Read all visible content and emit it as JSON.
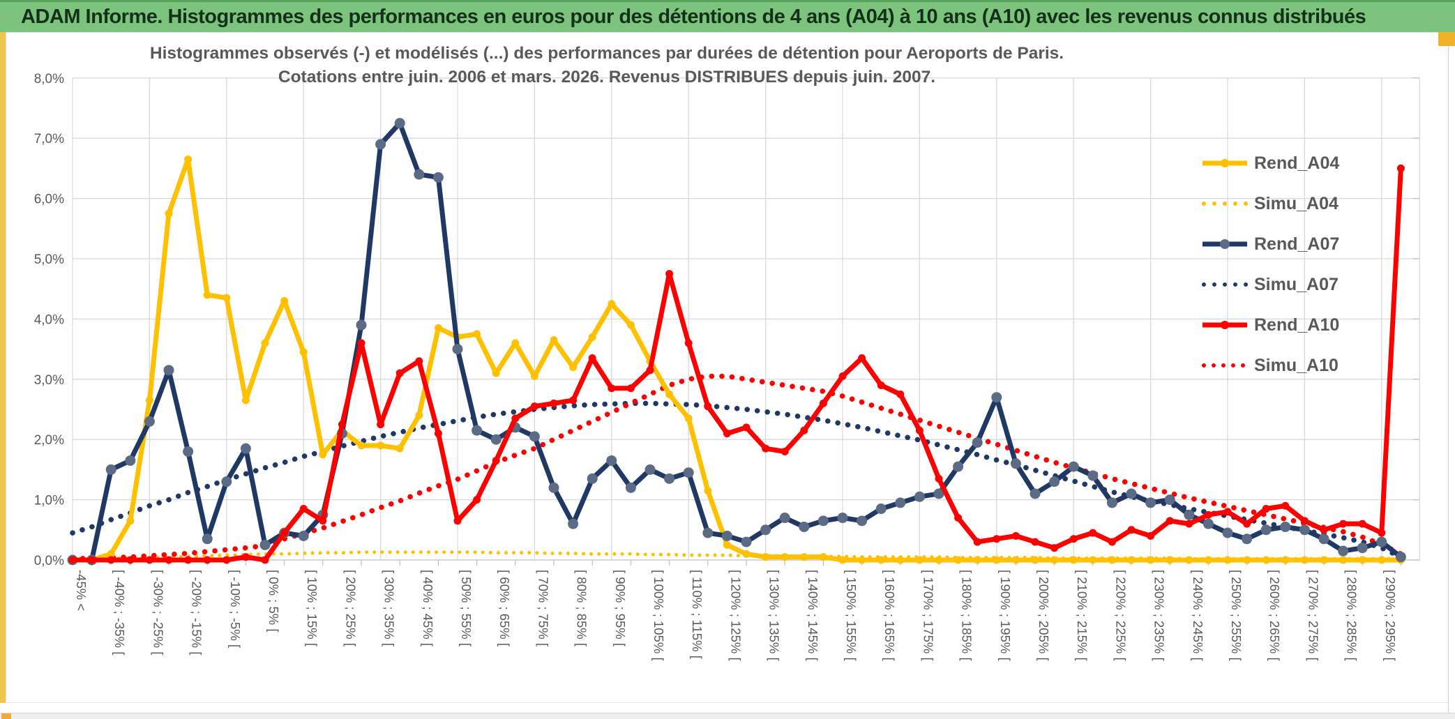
{
  "window": {
    "title": "ADAM Informe. Histogrammes des performances en euros pour des détentions de 4 ans (A04) à 10 ans (A10) avec les revenus connus distribués",
    "colors": {
      "titlebar_green": "#7cc47e",
      "titlebar_text": "#15301a",
      "gold_accent": "#f0c34c",
      "scroll_thumb_orange": "#f2a93b",
      "grid_gray": "#d9d9d9",
      "axis_text_gray": "#595959",
      "series_yellow": "#FFC000",
      "series_navy": "#1F3864",
      "series_red": "#FF0000",
      "navy_marker_gray": "#5b6b85"
    }
  },
  "chart_data": {
    "type": "line",
    "title_line1": "Histogrammes observés (-) et modélisés (...) des performances par durées de détention pour Aeroports de Paris.",
    "title_line2": "Cotations entre juin. 2006 et mars. 2026. Revenus DISTRIBUES depuis juin. 2007.",
    "grid": true,
    "legend_position": "right-inside",
    "ylim": [
      0,
      8
    ],
    "y_tick_labels": [
      "8,0%",
      "7,0%",
      "6,0%",
      "5,0%",
      "4,0%",
      "3,0%",
      "2,0%",
      "1,0%",
      "0,0%"
    ],
    "bins": 70,
    "bin_width_pct": 5,
    "x_tick_labels": [
      "-45% <",
      "[ -40% ; -35% [",
      "[ -30% ; -25% [",
      "[ -20% ; -15% [",
      "[ -10% ; -5% [",
      "[ 0% ; 5% [",
      "[ 10% ; 15% [",
      "[ 20% ; 25% [",
      "[ 30% ; 35% [",
      "[ 40% ; 45% [",
      "[ 50% ; 55% [",
      "[ 60% ; 65% [",
      "[ 70% ; 75% [",
      "[ 80% ; 85% [",
      "[ 90% ; 95% [",
      "[ 100% ; 105% [",
      "[ 110% ; 115% [",
      "[ 120% ; 125% [",
      "[ 130% ; 135% [",
      "[ 140% ; 145% [",
      "[ 150% ; 155% [",
      "[ 160% ; 165% [",
      "[ 170% ; 175% [",
      "[ 180% ; 185% [",
      "[ 190% ; 195% [",
      "[ 200% ; 205% [",
      "[ 210% ; 215% [",
      "[ 220% ; 225% [",
      "[ 230% ; 235% [",
      "[ 240% ; 245% [",
      "[ 250% ; 255% [",
      "[ 260% ; 265% [",
      "[ 270% ; 275% [",
      "[ 280% ; 285% [",
      "[ 290% ; 295% ["
    ],
    "series": [
      {
        "name": "Rend_A04",
        "style": "solid",
        "color": "#FFC000",
        "marker_color": "#FFC000",
        "values": [
          0,
          0,
          0.1,
          0.65,
          2.65,
          5.75,
          6.65,
          4.4,
          4.35,
          2.65,
          3.6,
          4.3,
          3.45,
          1.75,
          2.15,
          1.9,
          1.9,
          1.85,
          2.4,
          3.85,
          3.7,
          3.75,
          3.1,
          3.6,
          3.05,
          3.65,
          3.2,
          3.7,
          4.25,
          3.9,
          3.3,
          2.75,
          2.35,
          1.15,
          0.25,
          0.1,
          0.05,
          0.05,
          0.05,
          0.05,
          0,
          0,
          0,
          0,
          0,
          0,
          0,
          0,
          0,
          0,
          0,
          0,
          0,
          0,
          0,
          0,
          0,
          0,
          0,
          0,
          0,
          0,
          0,
          0,
          0,
          0,
          0,
          0,
          0,
          0
        ]
      },
      {
        "name": "Simu_A04",
        "style": "dotted",
        "color": "#FFC000",
        "values": [
          0.02,
          0.02,
          0.03,
          0.03,
          0.04,
          0.05,
          0.06,
          0.07,
          0.08,
          0.09,
          0.1,
          0.1,
          0.11,
          0.12,
          0.12,
          0.13,
          0.13,
          0.13,
          0.13,
          0.13,
          0.13,
          0.13,
          0.12,
          0.12,
          0.12,
          0.11,
          0.11,
          0.1,
          0.1,
          0.1,
          0.09,
          0.09,
          0.08,
          0.08,
          0.08,
          0.07,
          0.07,
          0.07,
          0.06,
          0.06,
          0.06,
          0.05,
          0.05,
          0.05,
          0.05,
          0.05,
          0.04,
          0.04,
          0.04,
          0.04,
          0.04,
          0.03,
          0.03,
          0.03,
          0.03,
          0.03,
          0.03,
          0.03,
          0.02,
          0.02,
          0.02,
          0.02,
          0.02,
          0.02,
          0.02,
          0.02,
          0.02,
          0.02,
          0.02,
          0.02
        ]
      },
      {
        "name": "Rend_A07",
        "style": "solid",
        "color": "#1F3864",
        "marker_color": "#5b6b85",
        "values": [
          0,
          0,
          1.5,
          1.65,
          2.3,
          3.15,
          1.8,
          0.35,
          1.3,
          1.85,
          0.25,
          0.45,
          0.4,
          0.75,
          2.1,
          3.9,
          6.9,
          7.25,
          6.4,
          6.35,
          3.5,
          2.15,
          2.0,
          2.2,
          2.05,
          1.2,
          0.6,
          1.35,
          1.65,
          1.2,
          1.5,
          1.35,
          1.45,
          0.45,
          0.4,
          0.3,
          0.5,
          0.7,
          0.55,
          0.65,
          0.7,
          0.65,
          0.85,
          0.95,
          1.05,
          1.1,
          1.55,
          1.95,
          2.7,
          1.6,
          1.1,
          1.3,
          1.55,
          1.4,
          0.95,
          1.1,
          0.95,
          1.0,
          0.75,
          0.6,
          0.45,
          0.35,
          0.5,
          0.55,
          0.5,
          0.35,
          0.15,
          0.2,
          0.3,
          0.05
        ]
      },
      {
        "name": "Simu_A07",
        "style": "dotted",
        "color": "#1F3864",
        "values": [
          0.45,
          0.55,
          0.67,
          0.78,
          0.9,
          1.0,
          1.12,
          1.22,
          1.33,
          1.43,
          1.53,
          1.62,
          1.72,
          1.8,
          1.89,
          1.97,
          2.05,
          2.12,
          2.19,
          2.25,
          2.31,
          2.37,
          2.42,
          2.46,
          2.5,
          2.53,
          2.56,
          2.58,
          2.59,
          2.6,
          2.6,
          2.59,
          2.58,
          2.56,
          2.53,
          2.5,
          2.46,
          2.42,
          2.37,
          2.32,
          2.26,
          2.2,
          2.13,
          2.06,
          1.99,
          1.91,
          1.83,
          1.75,
          1.66,
          1.58,
          1.49,
          1.4,
          1.31,
          1.22,
          1.13,
          1.05,
          0.98,
          0.92,
          0.85,
          0.79,
          0.73,
          0.67,
          0.61,
          0.55,
          0.49,
          0.43,
          0.37,
          0.3,
          0.2,
          0.05
        ]
      },
      {
        "name": "Rend_A10",
        "style": "solid",
        "color": "#FF0000",
        "marker_color": "#FF0000",
        "values": [
          0,
          0,
          0,
          0,
          0,
          0,
          0,
          0,
          0,
          0.05,
          0,
          0.45,
          0.85,
          0.65,
          2.25,
          3.6,
          2.25,
          3.1,
          3.3,
          2.1,
          0.65,
          1.0,
          1.65,
          2.35,
          2.55,
          2.6,
          2.65,
          3.35,
          2.85,
          2.85,
          3.15,
          4.75,
          3.6,
          2.55,
          2.1,
          2.2,
          1.85,
          1.8,
          2.15,
          2.6,
          3.05,
          3.35,
          2.9,
          2.75,
          2.15,
          1.35,
          0.7,
          0.3,
          0.35,
          0.4,
          0.3,
          0.2,
          0.35,
          0.45,
          0.3,
          0.5,
          0.4,
          0.65,
          0.6,
          0.75,
          0.8,
          0.6,
          0.85,
          0.9,
          0.65,
          0.5,
          0.6,
          0.6,
          0.45,
          6.5
        ]
      },
      {
        "name": "Simu_A10",
        "style": "dotted",
        "color": "#FF0000",
        "values": [
          0.02,
          0.03,
          0.04,
          0.05,
          0.07,
          0.09,
          0.11,
          0.14,
          0.17,
          0.2,
          0.24,
          0.35,
          0.44,
          0.53,
          0.64,
          0.75,
          0.87,
          0.98,
          1.11,
          1.23,
          1.34,
          1.48,
          1.62,
          1.74,
          1.85,
          2.0,
          2.15,
          2.3,
          2.45,
          2.6,
          2.75,
          2.9,
          3.0,
          3.05,
          3.05,
          3.0,
          2.95,
          2.9,
          2.85,
          2.8,
          2.72,
          2.62,
          2.52,
          2.42,
          2.32,
          2.22,
          2.12,
          2.02,
          1.92,
          1.82,
          1.72,
          1.62,
          1.53,
          1.44,
          1.35,
          1.27,
          1.19,
          1.11,
          1.03,
          0.96,
          0.89,
          0.82,
          0.75,
          0.68,
          0.61,
          0.54,
          0.47,
          0.38,
          0.26,
          0.1
        ]
      }
    ]
  }
}
